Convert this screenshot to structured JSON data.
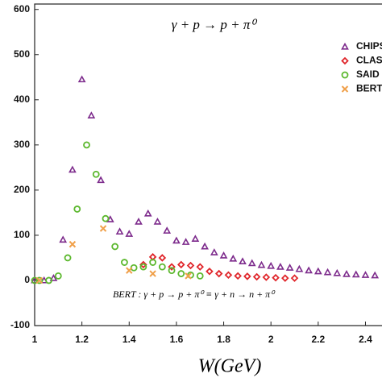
{
  "chart_data": {
    "type": "scatter",
    "title": "γ + p → p + π⁰",
    "annotation": "BERT : γ + p → p + π⁰ ≡ γ + n → n + π⁰",
    "x_label": "W(GeV)",
    "xlim": [
      1,
      2.47
    ],
    "ylim": [
      -100,
      612
    ],
    "xticks": [
      1,
      1.2,
      1.4,
      1.6,
      1.8,
      2,
      2.2,
      2.4
    ],
    "yticks": [
      -100,
      0,
      100,
      200,
      300,
      400,
      500,
      600
    ],
    "legend": "upper right",
    "series": [
      {
        "name": "CHIPS",
        "color": "#7d2b8c",
        "marker": "triangle",
        "x": [
          1.0,
          1.04,
          1.08,
          1.12,
          1.16,
          1.2,
          1.24,
          1.28,
          1.32,
          1.36,
          1.4,
          1.44,
          1.48,
          1.52,
          1.56,
          1.6,
          1.64,
          1.68,
          1.72,
          1.76,
          1.8,
          1.84,
          1.88,
          1.92,
          1.96,
          2.0,
          2.04,
          2.08,
          2.12,
          2.16,
          2.2,
          2.24,
          2.28,
          2.32,
          2.36,
          2.4,
          2.44
        ],
        "values": [
          0,
          0,
          5,
          90,
          245,
          445,
          365,
          222,
          135,
          108,
          103,
          130,
          148,
          130,
          110,
          88,
          85,
          92,
          75,
          62,
          55,
          48,
          42,
          38,
          34,
          32,
          30,
          28,
          25,
          22,
          20,
          18,
          16,
          14,
          13,
          12,
          11
        ]
      },
      {
        "name": "CLAS",
        "color": "#e0262b",
        "marker": "diamond",
        "x": [
          1.46,
          1.5,
          1.54,
          1.58,
          1.62,
          1.66,
          1.7,
          1.74,
          1.78,
          1.82,
          1.86,
          1.9,
          1.94,
          1.98,
          2.02,
          2.06,
          2.1
        ],
        "values": [
          35,
          52,
          50,
          30,
          35,
          33,
          30,
          20,
          15,
          12,
          10,
          9,
          8,
          7,
          6,
          5,
          5
        ]
      },
      {
        "name": "SAID",
        "color": "#5cb82e",
        "marker": "circle",
        "x": [
          1.0,
          1.02,
          1.06,
          1.1,
          1.14,
          1.18,
          1.22,
          1.26,
          1.3,
          1.34,
          1.38,
          1.42,
          1.46,
          1.5,
          1.54,
          1.58,
          1.62,
          1.66,
          1.7
        ],
        "values": [
          0,
          0,
          0,
          10,
          50,
          158,
          300,
          235,
          137,
          75,
          40,
          28,
          30,
          40,
          30,
          22,
          15,
          12,
          10
        ]
      },
      {
        "name": "BERT",
        "color": "#f0a04a",
        "marker": "x",
        "x": [
          1.02,
          1.16,
          1.29,
          1.4,
          1.5,
          1.65
        ],
        "values": [
          0,
          80,
          115,
          22,
          15,
          10
        ]
      }
    ]
  }
}
